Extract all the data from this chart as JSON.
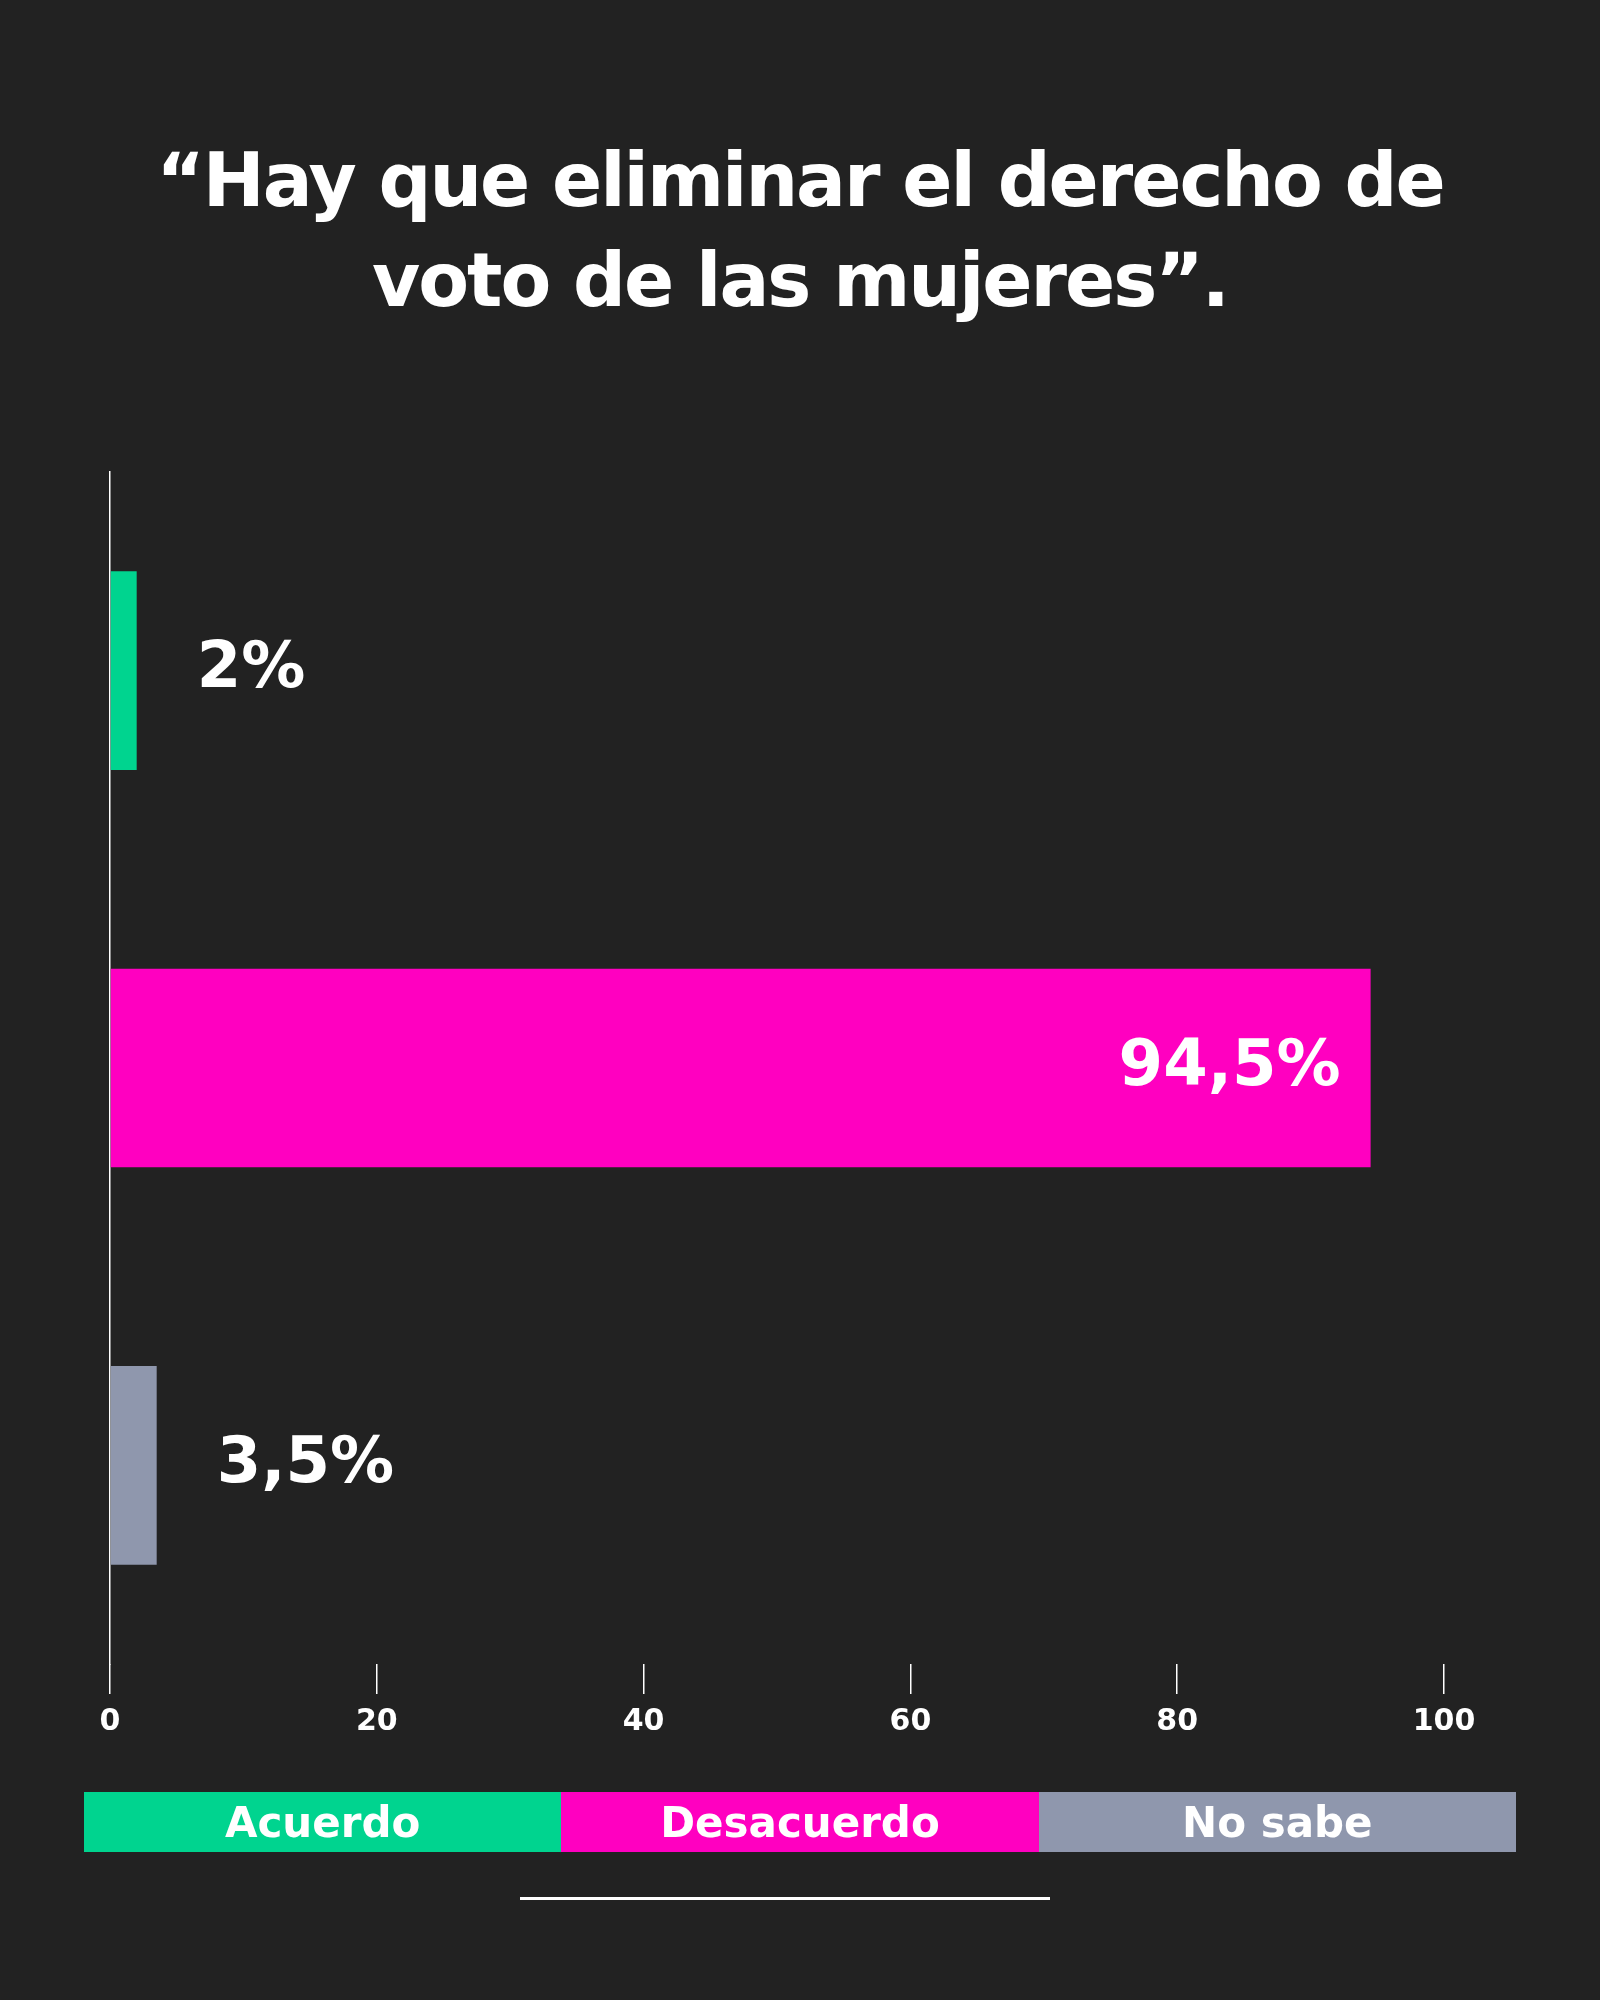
{
  "chart_data": {
    "type": "bar",
    "orientation": "horizontal",
    "stacked": true,
    "title": "“Hay que eliminar el derecho de voto de las mujeres”.",
    "categories": [
      null,
      null,
      null
    ],
    "series": [
      {
        "name": "Acuerdo",
        "color": "#00d48f",
        "values": [
          2,
          null,
          null
        ],
        "value_labels": [
          "2%",
          null,
          null
        ]
      },
      {
        "name": "Desacuerdo",
        "color": "#ff00c0",
        "values": [
          null,
          94.5,
          null
        ],
        "value_labels": [
          null,
          "94,5%",
          null
        ]
      },
      {
        "name": "No sabe",
        "color": "#8f97ad",
        "values": [
          null,
          null,
          3.5
        ],
        "value_labels": [
          null,
          null,
          "3,5%"
        ]
      }
    ],
    "xlim": [
      0,
      100
    ],
    "xticks": [
      0,
      20,
      40,
      60,
      80,
      100
    ],
    "grid": false,
    "legend": "bottom"
  }
}
